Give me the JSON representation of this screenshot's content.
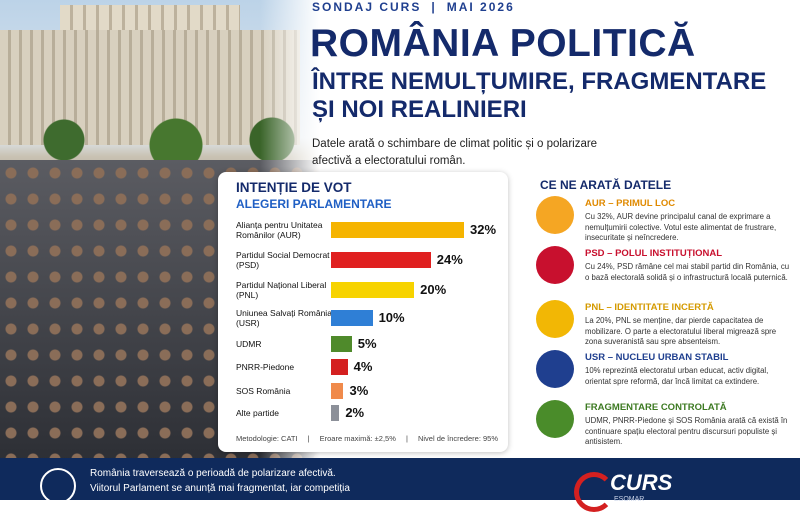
{
  "header": {
    "kicker": "SONDAJ CURS",
    "date": "MAI 2026",
    "title": "ROMÂNIA POLITICĂ",
    "subtitle_1": "ÎNTRE NEMULȚUMIRE, FRAGMENTARE",
    "subtitle_2": "ȘI NOI REALINIERI",
    "description": "Datele arată o schimbare de climat politic și o polarizare afectivă a electoratului român."
  },
  "chart_data": {
    "type": "bar",
    "orientation": "horizontal",
    "title": "INTENȚIE DE VOT",
    "subtitle": "ALEGERI PARLAMENTARE",
    "categories": [
      "Alianța pentru Unitatea Românilor (AUR)",
      "Partidul Social Democrat (PSD)",
      "Partidul Național Liberal (PNL)",
      "Uniunea Salvați România (USR)",
      "UDMR",
      "PNRR-Piedone",
      "SOS România",
      "Alte partide"
    ],
    "values": [
      32,
      24,
      20,
      10,
      5,
      4,
      3,
      2
    ],
    "value_labels": [
      "32%",
      "24%",
      "20%",
      "10%",
      "5%",
      "4%",
      "3%",
      "2%"
    ],
    "colors": [
      "#f5b400",
      "#e02020",
      "#f7d300",
      "#2f7fd6",
      "#4f8a2b",
      "#d42020",
      "#f08a4b",
      "#8c9099"
    ],
    "notes": [
      "Metodologie: CATI",
      "Eroare maximă: ±2,5%",
      "Nivel de încredere: 95%"
    ]
  },
  "insights": {
    "title": "CE NE ARATĂ DATELE",
    "items": [
      {
        "heading": "AUR – PRIMUL LOC",
        "text": "Cu 32%, AUR devine principalul canal de exprimare a nemulțumirii colective. Votul este alimentat de frustrare, insecuritate și neîncredere."
      },
      {
        "heading": "PSD – POLUL INSTITUȚIONAL",
        "text": "Cu 24%, PSD rămâne cel mai stabil partid din România, cu o bază electorală solidă și o infrastructură locală puternică."
      },
      {
        "heading": "PNL – IDENTITATE INCERTĂ",
        "text": "La 20%, PNL se menține, dar pierde capacitatea de mobilizare. O parte a electoratului liberal migrează spre zona suveranistă sau spre absenteism."
      },
      {
        "heading": "USR – NUCLEU URBAN STABIL",
        "text": "10% reprezintă electoratul urban educat, activ digital, orientat spre reformă, dar încă limitat ca extindere."
      },
      {
        "heading": "FRAGMENTARE CONTROLATĂ",
        "text": "UDMR, PNRR-Piedone și SOS România arată că există în continuare spațiu electoral pentru discursuri populiste și antisistem."
      }
    ]
  },
  "footer": {
    "text": "România traversează o perioadă de polarizare afectivă. Viitorul Parlament se anunță mai fragmentat, iar competiția",
    "logo": "CURS",
    "logo_sub": "ESOMAR"
  }
}
